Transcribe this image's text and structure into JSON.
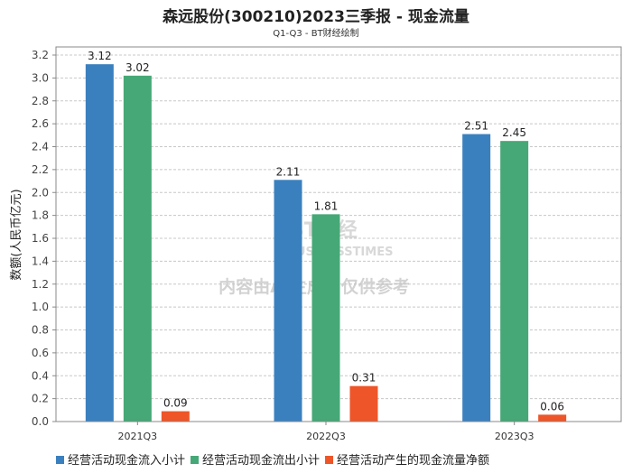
{
  "chart_data": {
    "type": "bar",
    "title": "森远股份(300210)2023三季报 - 现金流量",
    "subtitle": "Q1-Q3 - BT财经绘制",
    "xlabel": "",
    "ylabel": "数额(人民币亿元)",
    "ylim": [
      0,
      3.2
    ],
    "yticks": [
      "0.0",
      "0.2",
      "0.4",
      "0.6",
      "0.8",
      "1.0",
      "1.2",
      "1.4",
      "1.6",
      "1.8",
      "2.0",
      "2.2",
      "2.4",
      "2.6",
      "2.8",
      "3.0",
      "3.2"
    ],
    "grid": true,
    "legend_position": "bottom",
    "categories": [
      "2021Q3",
      "2022Q3",
      "2023Q3"
    ],
    "series": [
      {
        "name": "经营活动现金流入小计",
        "color": "#3a80bf",
        "values": [
          3.12,
          2.11,
          2.51
        ]
      },
      {
        "name": "经营活动现金流出小计",
        "color": "#45a876",
        "values": [
          3.02,
          1.81,
          2.45
        ]
      },
      {
        "name": "经营活动产生的现金流量净额",
        "color": "#ee5528",
        "values": [
          0.09,
          0.31,
          0.06
        ]
      }
    ]
  },
  "watermark": {
    "brand": "BT财经",
    "brand_en": "BUSINESSTIMES",
    "notice": "内容由AI生成，仅供参考"
  }
}
